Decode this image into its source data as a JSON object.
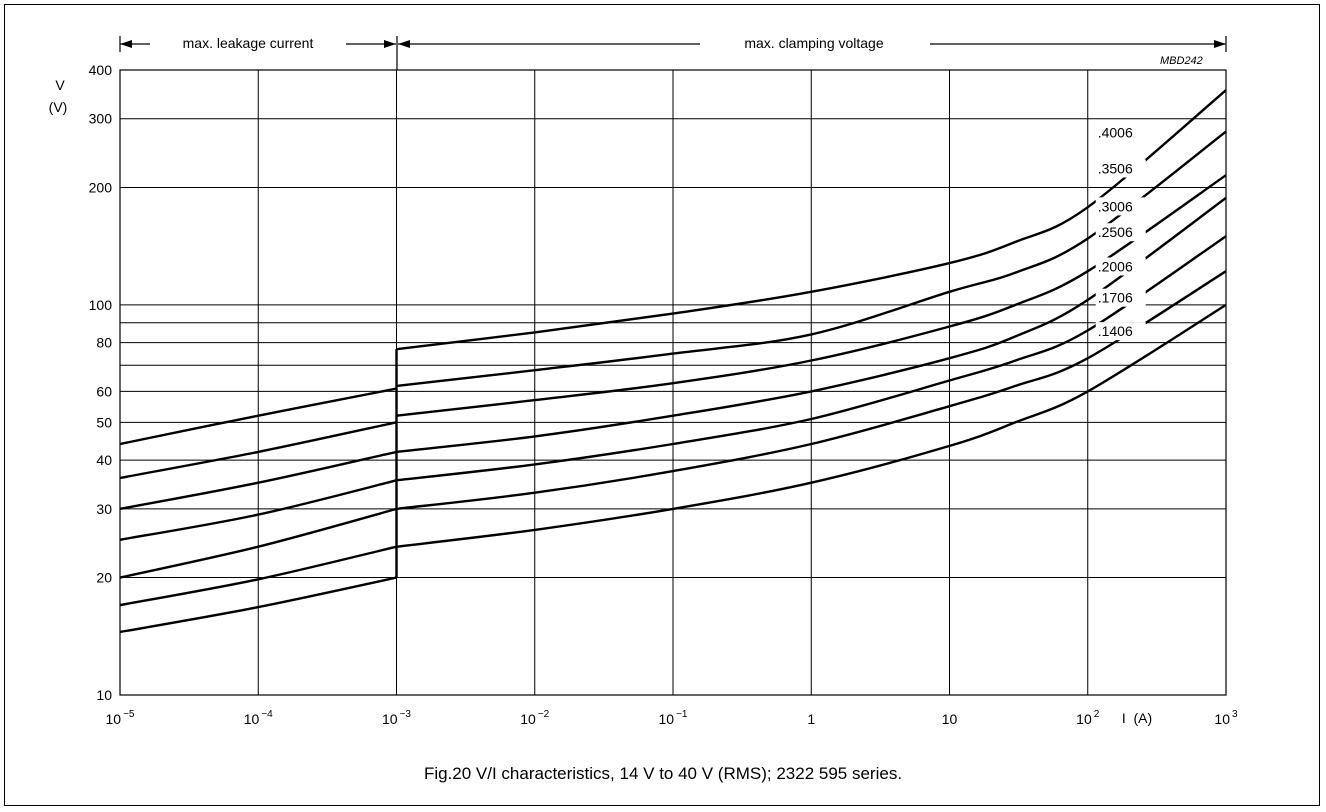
{
  "figure": {
    "caption": "Fig.20  V/I characteristics, 14 V to 40 V (RMS); 2322 595 series.",
    "code": "MBD242",
    "region_left": "max. leakage current",
    "region_right": "max. clamping voltage"
  },
  "chart_data": {
    "type": "line",
    "title": "",
    "x_scale": "log",
    "y_scale": "log",
    "xlim": [
      1e-05,
      1000
    ],
    "ylim": [
      10,
      400
    ],
    "ylabel_lines": [
      "V",
      "(V)"
    ],
    "xlabel": "I  (A)",
    "grid": true,
    "x_ticks": [
      {
        "value": 1e-05,
        "base": "10",
        "exp": "−5"
      },
      {
        "value": 0.0001,
        "base": "10",
        "exp": "−4"
      },
      {
        "value": 0.001,
        "base": "10",
        "exp": "−3"
      },
      {
        "value": 0.01,
        "base": "10",
        "exp": "−2"
      },
      {
        "value": 0.1,
        "base": "10",
        "exp": "−1"
      },
      {
        "value": 1,
        "base": "1",
        "exp": ""
      },
      {
        "value": 10,
        "base": "10",
        "exp": ""
      },
      {
        "value": 100,
        "base": "10",
        "exp": "2"
      },
      {
        "value": 1000,
        "base": "10",
        "exp": "3"
      }
    ],
    "y_ticks": [
      {
        "value": 10,
        "label": "10"
      },
      {
        "value": 20,
        "label": "20"
      },
      {
        "value": 30,
        "label": "30"
      },
      {
        "value": 40,
        "label": "40"
      },
      {
        "value": 50,
        "label": "50"
      },
      {
        "value": 60,
        "label": "60"
      },
      {
        "value": 80,
        "label": "80"
      },
      {
        "value": 100,
        "label": "100"
      },
      {
        "value": 200,
        "label": "200"
      },
      {
        "value": 300,
        "label": "300"
      },
      {
        "value": 400,
        "label": "400"
      }
    ],
    "extra_gridlines_y": [
      70,
      90
    ],
    "boundary_x": 0.001,
    "series": [
      {
        "name": ".4006",
        "leak_x": [
          1e-05,
          0.0001,
          0.001
        ],
        "leak_y": [
          44,
          52,
          61
        ],
        "clamp_x": [
          0.001,
          0.01,
          0.1,
          1,
          10,
          30,
          100,
          1000
        ],
        "clamp_y": [
          77,
          85,
          95,
          108,
          128,
          145,
          178,
          355
        ],
        "label_at": 300
      },
      {
        "name": ".3506",
        "leak_x": [
          1e-05,
          0.0001,
          0.001
        ],
        "leak_y": [
          36,
          42,
          50
        ],
        "clamp_x": [
          0.001,
          0.01,
          0.1,
          1,
          10,
          30,
          100,
          1000
        ],
        "clamp_y": [
          62,
          68,
          75,
          84,
          108,
          121,
          148,
          278
        ],
        "label_at": 300
      },
      {
        "name": ".3006",
        "leak_x": [
          1e-05,
          0.0001,
          0.001
        ],
        "leak_y": [
          30,
          35,
          42
        ],
        "clamp_x": [
          0.001,
          0.01,
          0.1,
          1,
          10,
          30,
          100,
          1000
        ],
        "clamp_y": [
          52,
          57,
          63,
          72,
          88,
          100,
          122,
          215
        ],
        "label_at": 300
      },
      {
        "name": ".2506",
        "leak_x": [
          1e-05,
          0.0001,
          0.001
        ],
        "leak_y": [
          25,
          29,
          35.5
        ],
        "clamp_x": [
          0.001,
          0.01,
          0.1,
          1,
          10,
          30,
          100,
          1000
        ],
        "clamp_y": [
          42,
          46,
          52,
          60,
          73,
          83,
          103,
          188
        ],
        "label_at": 300
      },
      {
        "name": ".2006",
        "leak_x": [
          1e-05,
          0.0001,
          0.001
        ],
        "leak_y": [
          20,
          24,
          30
        ],
        "clamp_x": [
          0.001,
          0.01,
          0.1,
          1,
          10,
          30,
          100,
          1000
        ],
        "clamp_y": [
          35.5,
          39,
          44,
          51,
          64,
          72,
          86,
          150
        ],
        "label_at": 300
      },
      {
        "name": ".1706",
        "leak_x": [
          1e-05,
          0.0001,
          0.001
        ],
        "leak_y": [
          17,
          19.8,
          24
        ],
        "clamp_x": [
          0.001,
          0.01,
          0.1,
          1,
          10,
          30,
          100,
          1000
        ],
        "clamp_y": [
          30,
          33,
          37.5,
          44,
          55,
          62,
          73,
          122
        ],
        "label_at": 300
      },
      {
        "name": ".1406",
        "leak_x": [
          1e-05,
          0.0001,
          0.001
        ],
        "leak_y": [
          14.5,
          16.8,
          20
        ],
        "clamp_x": [
          0.001,
          0.01,
          0.1,
          1,
          10,
          30,
          100,
          1000
        ],
        "clamp_y": [
          24,
          26.5,
          30,
          35,
          43.5,
          50,
          60,
          100
        ],
        "label_at": 300
      }
    ]
  }
}
